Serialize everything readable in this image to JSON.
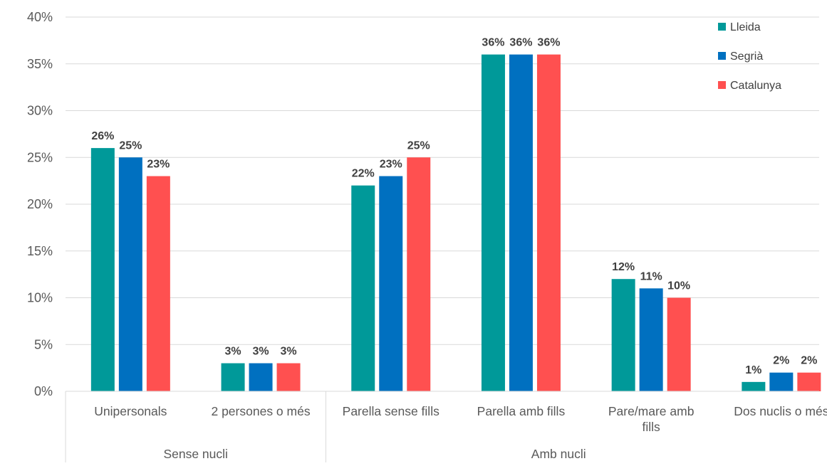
{
  "chart_data": {
    "type": "bar",
    "title": "",
    "xlabel": "",
    "ylabel": "",
    "ylim": [
      0,
      40
    ],
    "y_ticks": [
      "0%",
      "5%",
      "10%",
      "15%",
      "20%",
      "25%",
      "30%",
      "35%",
      "40%"
    ],
    "grid": "horizontal",
    "legend": "top-right",
    "categories": [
      [
        "Unipersonals"
      ],
      [
        "2 persones o més"
      ],
      [
        "Parella sense fills"
      ],
      [
        "Parella amb fills"
      ],
      [
        "Pare/mare amb",
        "fills"
      ],
      [
        "Dos nuclis o més"
      ]
    ],
    "groups": [
      {
        "label": "Sense nucli",
        "categories": [
          0,
          1
        ]
      },
      {
        "label": "Amb nucli",
        "categories": [
          2,
          3,
          4,
          5
        ]
      }
    ],
    "series": [
      {
        "name": "Lleida",
        "color": "#009999",
        "values": [
          26,
          3,
          22,
          36,
          12,
          1
        ],
        "labels": [
          "26%",
          "3%",
          "22%",
          "36%",
          "12%",
          "1%"
        ]
      },
      {
        "name": "Segrià",
        "color": "#0070c0",
        "values": [
          25,
          3,
          23,
          36,
          11,
          2
        ],
        "labels": [
          "25%",
          "3%",
          "23%",
          "36%",
          "11%",
          "2%"
        ]
      },
      {
        "name": "Catalunya",
        "color": "#ff5050",
        "values": [
          23,
          3,
          25,
          36,
          10,
          2
        ],
        "labels": [
          "23%",
          "3%",
          "25%",
          "36%",
          "10%",
          "2%"
        ]
      }
    ]
  }
}
